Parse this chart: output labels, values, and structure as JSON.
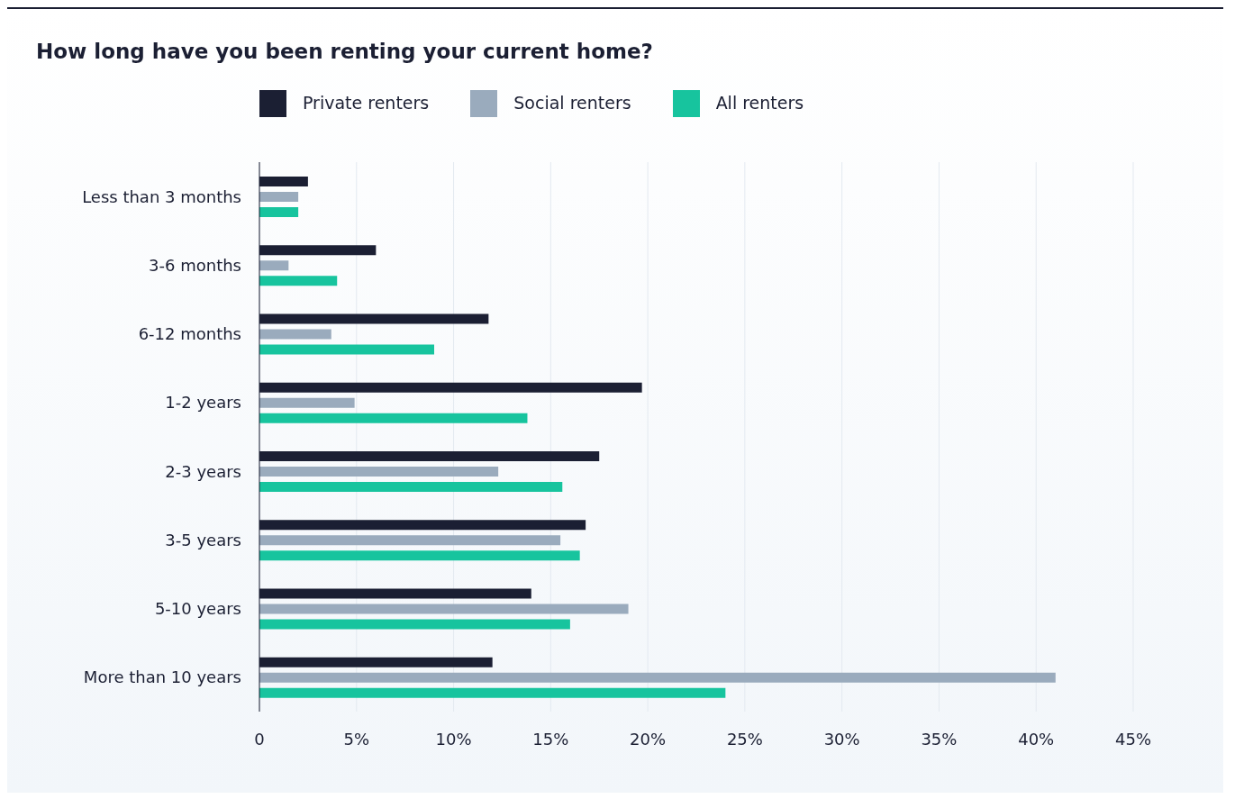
{
  "chart_data": {
    "type": "bar",
    "orientation": "horizontal",
    "title": "How long have you been renting your current home?",
    "categories": [
      "Less than 3 months",
      "3-6 months",
      "6-12 months",
      "1-2 years",
      "2-3 years",
      "3-5 years",
      "5-10 years",
      "More than 10 years"
    ],
    "series": [
      {
        "name": "Private renters",
        "color": "#1b1f33",
        "values": [
          2.5,
          6.0,
          11.8,
          19.7,
          17.5,
          16.8,
          14.0,
          12.0
        ]
      },
      {
        "name": "Social renters",
        "color": "#9aabbd",
        "values": [
          2.0,
          1.5,
          3.7,
          4.9,
          12.3,
          15.5,
          19.0,
          41.0
        ]
      },
      {
        "name": "All renters",
        "color": "#17c49e",
        "values": [
          2.0,
          4.0,
          9.0,
          13.8,
          15.6,
          16.5,
          16.0,
          24.0
        ]
      }
    ],
    "xlim": [
      0,
      45
    ],
    "xticks": [
      0,
      {
        "value": 5,
        "label": "5%"
      },
      {
        "value": 10,
        "label": "10%"
      },
      {
        "value": 15,
        "label": "15%"
      },
      {
        "value": 20,
        "label": "20%"
      },
      {
        "value": 25,
        "label": "25%"
      },
      {
        "value": 30,
        "label": "30%"
      },
      {
        "value": 35,
        "label": "35%"
      },
      {
        "value": 40,
        "label": "40%"
      },
      {
        "value": 45,
        "label": "45%"
      }
    ],
    "grid": "x",
    "legend": "top"
  }
}
